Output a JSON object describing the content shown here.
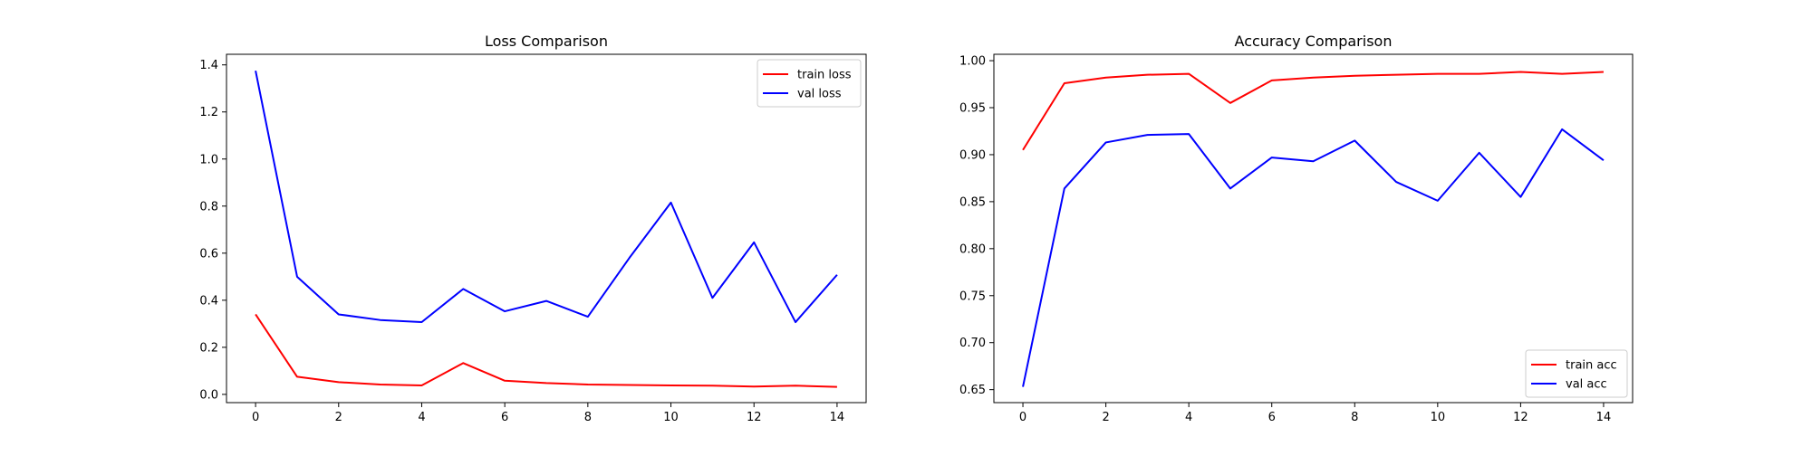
{
  "chart_data": [
    {
      "type": "line",
      "title": "Loss Comparison",
      "xlabel": "",
      "ylabel": "",
      "x": [
        0,
        1,
        2,
        3,
        4,
        5,
        6,
        7,
        8,
        9,
        10,
        11,
        12,
        13,
        14
      ],
      "series": [
        {
          "name": "train loss",
          "color": "#ff0000",
          "values": [
            0.34,
            0.075,
            0.052,
            0.042,
            0.038,
            0.133,
            0.058,
            0.048,
            0.042,
            0.04,
            0.038,
            0.037,
            0.033,
            0.037,
            0.032
          ]
        },
        {
          "name": "val loss",
          "color": "#0000ff",
          "values": [
            1.375,
            0.5,
            0.34,
            0.316,
            0.307,
            0.448,
            0.353,
            0.397,
            0.33,
            0.58,
            0.815,
            0.41,
            0.646,
            0.307,
            0.508
          ]
        }
      ],
      "xlim": [
        -0.7,
        14.7
      ],
      "ylim": [
        -0.035,
        1.445
      ],
      "xticks": [
        0,
        2,
        4,
        6,
        8,
        10,
        12,
        14
      ],
      "yticks": [
        0.0,
        0.2,
        0.4,
        0.6,
        0.8,
        1.0,
        1.2,
        1.4
      ],
      "xtick_labels": [
        "0",
        "2",
        "4",
        "6",
        "8",
        "10",
        "12",
        "14"
      ],
      "ytick_labels": [
        "0.0",
        "0.2",
        "0.4",
        "0.6",
        "0.8",
        "1.0",
        "1.2",
        "1.4"
      ],
      "legend": "upper right",
      "grid": false
    },
    {
      "type": "line",
      "title": "Accuracy Comparison",
      "xlabel": "",
      "ylabel": "",
      "x": [
        0,
        1,
        2,
        3,
        4,
        5,
        6,
        7,
        8,
        9,
        10,
        11,
        12,
        13,
        14
      ],
      "series": [
        {
          "name": "train acc",
          "color": "#ff0000",
          "values": [
            0.905,
            0.976,
            0.982,
            0.985,
            0.986,
            0.955,
            0.979,
            0.982,
            0.984,
            0.985,
            0.986,
            0.986,
            0.988,
            0.986,
            0.988
          ]
        },
        {
          "name": "val acc",
          "color": "#0000ff",
          "values": [
            0.653,
            0.864,
            0.913,
            0.921,
            0.922,
            0.864,
            0.897,
            0.893,
            0.915,
            0.871,
            0.851,
            0.902,
            0.855,
            0.927,
            0.894
          ]
        }
      ],
      "xlim": [
        -0.7,
        14.7
      ],
      "ylim": [
        0.6362,
        1.0068
      ],
      "xticks": [
        0,
        2,
        4,
        6,
        8,
        10,
        12,
        14
      ],
      "yticks": [
        0.65,
        0.7,
        0.75,
        0.8,
        0.85,
        0.9,
        0.95,
        1.0
      ],
      "xtick_labels": [
        "0",
        "2",
        "4",
        "6",
        "8",
        "10",
        "12",
        "14"
      ],
      "ytick_labels": [
        "0.65",
        "0.70",
        "0.75",
        "0.80",
        "0.85",
        "0.90",
        "0.95",
        "1.00"
      ],
      "legend": "lower right",
      "grid": false
    }
  ]
}
